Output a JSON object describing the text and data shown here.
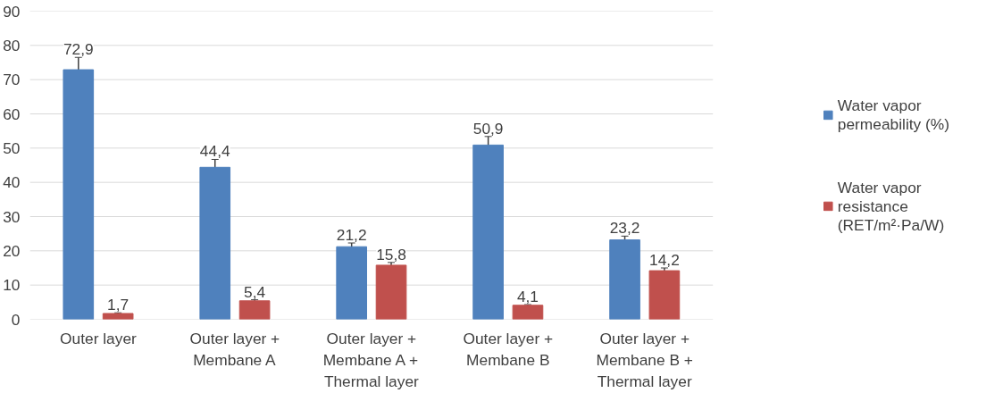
{
  "chart_data": {
    "type": "bar",
    "categories": [
      "Outer layer",
      "Outer layer + Membane A",
      "Outer layer + Membane A + Thermal layer",
      "Outer layer + Membane B",
      "Outer layer + Membane B + Thermal layer"
    ],
    "series": [
      {
        "name": "Water vapor permeability (%)",
        "color": "#4f81bd",
        "values": [
          72.9,
          44.4,
          21.2,
          50.9,
          23.2
        ],
        "errors": [
          3.6,
          2.3,
          1.1,
          2.5,
          1.1
        ],
        "value_labels": [
          "72,9",
          "44,4",
          "21,2",
          "50,9",
          "23,2"
        ]
      },
      {
        "name": "Water vapor resistance (RET/m²·Pa/W)",
        "color": "#c0504d",
        "values": [
          1.7,
          5.4,
          15.8,
          4.1,
          14.2
        ],
        "errors": [
          0.2,
          0.3,
          0.8,
          0.2,
          0.8
        ],
        "value_labels": [
          "1,7",
          "5,4",
          "15,8",
          "4,1",
          "14,2"
        ]
      }
    ],
    "ylim": [
      0,
      90
    ],
    "yticks": [
      0,
      10,
      20,
      30,
      40,
      50,
      60,
      70,
      80,
      90
    ],
    "grid": "y",
    "legend": "right"
  }
}
